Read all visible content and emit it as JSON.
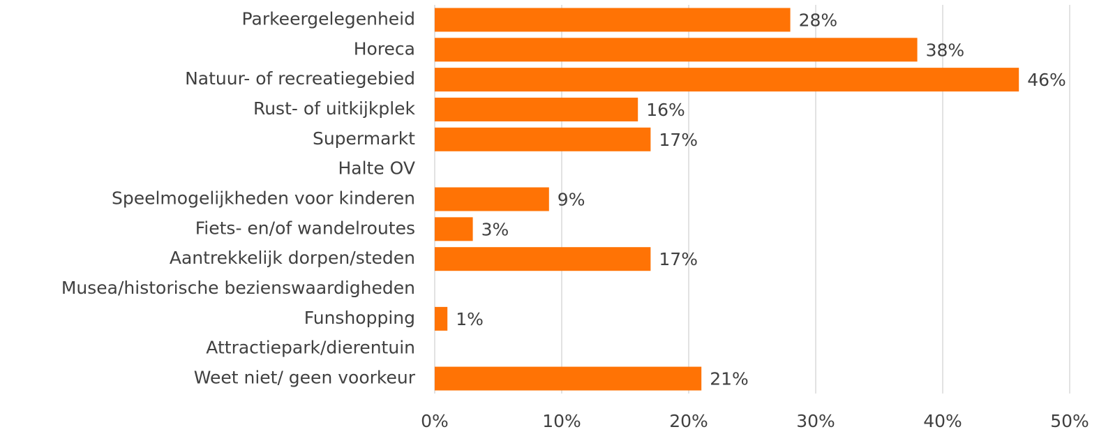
{
  "chart_data": {
    "type": "bar",
    "orientation": "horizontal",
    "categories": [
      "Parkeergelegenheid",
      "Horeca",
      "Natuur- of recreatiegebied",
      "Rust- of uitkijkplek",
      "Supermarkt",
      "Halte OV",
      "Speelmogelijkheden voor kinderen",
      "Fiets- en/of wandelroutes",
      "Aantrekkelijk dorpen/steden",
      "Musea/historische bezienswaardigheden",
      "Funshopping",
      "Attractiepark/dierentuin",
      "Weet niet/ geen voorkeur"
    ],
    "values": [
      28,
      38,
      46,
      16,
      17,
      null,
      9,
      3,
      17,
      null,
      1,
      null,
      21
    ],
    "value_labels": [
      "28%",
      "38%",
      "46%",
      "16%",
      "17%",
      null,
      "9%",
      "3%",
      "17%",
      null,
      "1%",
      null,
      "21%"
    ],
    "color": "#ff7305",
    "xlim": [
      0,
      50
    ],
    "xticks": [
      {
        "value": 0,
        "label": "0%"
      },
      {
        "value": 10,
        "label": "10%"
      },
      {
        "value": 20,
        "label": "20%"
      },
      {
        "value": 30,
        "label": "30%"
      },
      {
        "value": 40,
        "label": "40%"
      },
      {
        "value": 50,
        "label": "50%"
      }
    ],
    "grid": true
  }
}
